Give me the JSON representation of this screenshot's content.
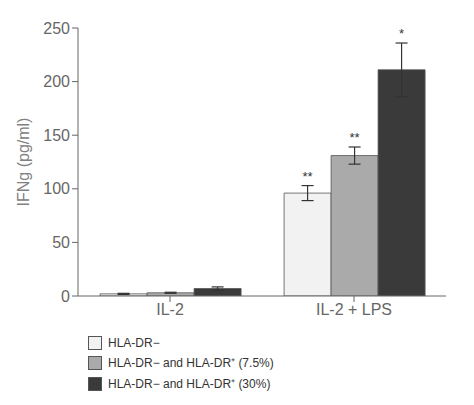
{
  "chart_data": {
    "type": "bar",
    "categories": [
      "IL-2",
      "IL-2 + LPS"
    ],
    "series": [
      {
        "name": "HLA-DR−",
        "color": "#f2f2f2",
        "values": [
          2,
          96
        ],
        "errors": [
          0.5,
          7
        ],
        "annotations": [
          null,
          "**"
        ]
      },
      {
        "name": "HLA-DR− and HLA-DR⁺ (7.5%)",
        "color": "#aaaaaa",
        "values": [
          3,
          131
        ],
        "errors": [
          0.5,
          8
        ],
        "annotations": [
          null,
          "**"
        ]
      },
      {
        "name": "HLA-DR− and HLA-DR⁺ (30%)",
        "color": "#3a3a3a",
        "values": [
          7,
          211
        ],
        "errors": [
          1.5,
          25
        ],
        "annotations": [
          null,
          "*"
        ]
      }
    ],
    "ylabel": "IFNg (pg/ml)",
    "ylim": [
      0,
      250
    ],
    "yticks": [
      0,
      50,
      100,
      150,
      200,
      250
    ],
    "grid": false,
    "legend": "bottom"
  }
}
